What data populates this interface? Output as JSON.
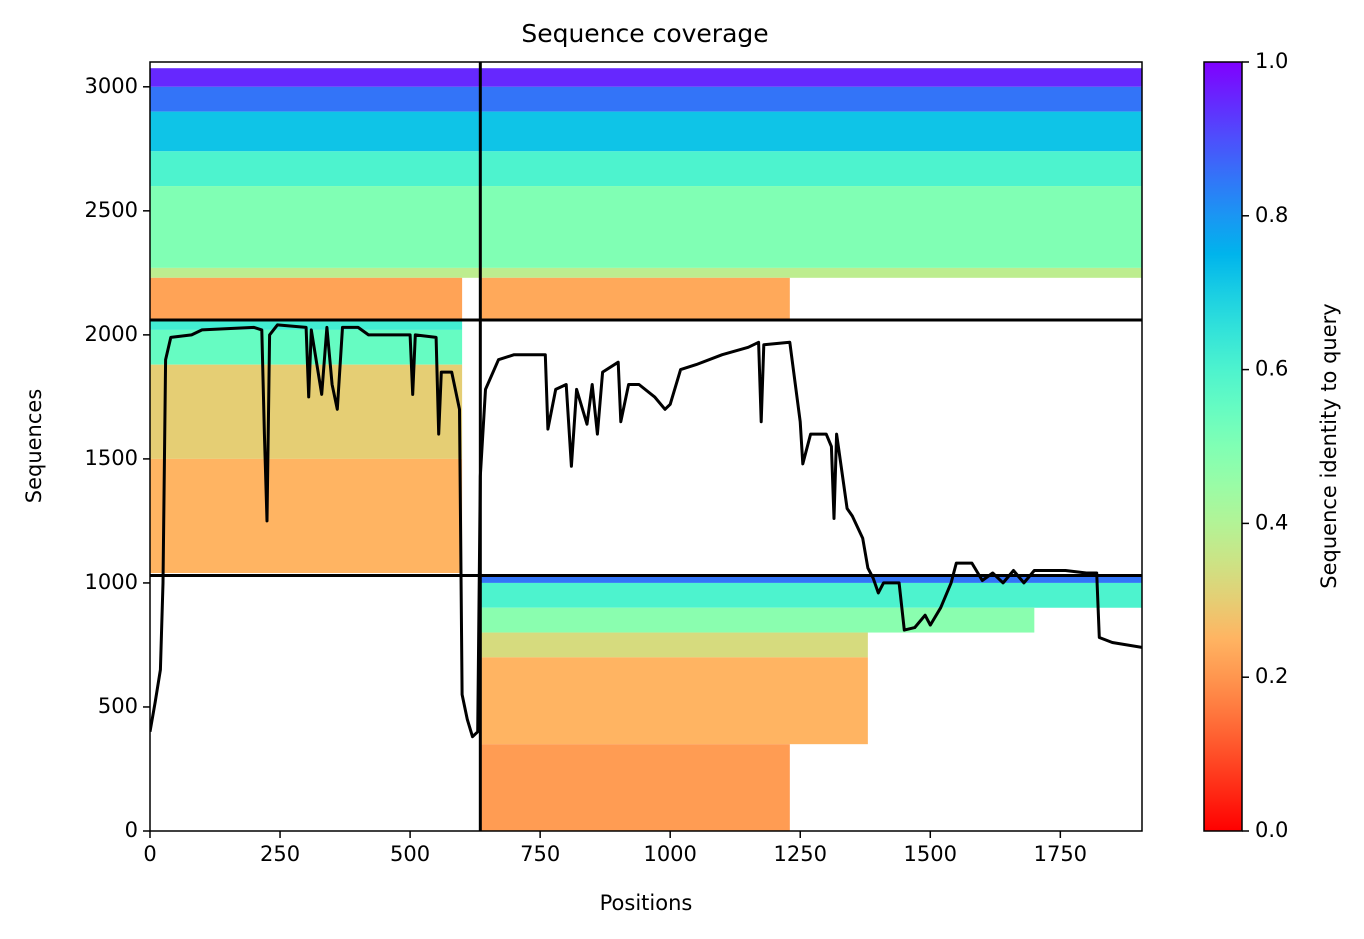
{
  "chart_data": {
    "type": "heatmap",
    "title": "Sequence coverage",
    "xlabel": "Positions",
    "ylabel": "Sequences",
    "colorbar_label": "Sequence identity to query",
    "colormap": "rainbow_r",
    "xlim": [
      0,
      1907
    ],
    "ylim": [
      0,
      3100
    ],
    "xticks": [
      0,
      250,
      500,
      750,
      1000,
      1250,
      1500,
      1750
    ],
    "yticks": [
      0,
      500,
      1000,
      1500,
      2000,
      2500,
      3000
    ],
    "clim": [
      0,
      1
    ],
    "cticks": [
      {
        "value": 0,
        "label": "0.0"
      },
      {
        "value": 0.2,
        "label": "0.2"
      },
      {
        "value": 0.4,
        "label": "0.4"
      },
      {
        "value": 0.6,
        "label": "0.6"
      },
      {
        "value": 0.8,
        "label": "0.8"
      },
      {
        "value": 1,
        "label": "1.0"
      }
    ],
    "blocks": [
      {
        "x": [
          0,
          1907
        ],
        "y": [
          3000,
          3075
        ],
        "identity": 0.95
      },
      {
        "x": [
          0,
          1907
        ],
        "y": [
          2900,
          3000
        ],
        "identity": 0.85
      },
      {
        "x": [
          0,
          1907
        ],
        "y": [
          2740,
          2900
        ],
        "identity": 0.72
      },
      {
        "x": [
          0,
          1907
        ],
        "y": [
          2600,
          2740
        ],
        "identity": 0.6
      },
      {
        "x": [
          0,
          1907
        ],
        "y": [
          2270,
          2600
        ],
        "identity": 0.5
      },
      {
        "x": [
          0,
          1907
        ],
        "y": [
          2230,
          2270
        ],
        "identity": 0.38
      },
      {
        "x": [
          0,
          600
        ],
        "y": [
          2060,
          2230
        ],
        "identity": 0.22
      },
      {
        "x": [
          635,
          1230
        ],
        "y": [
          2060,
          2230
        ],
        "identity": 0.23
      },
      {
        "x": [
          0,
          600
        ],
        "y": [
          2020,
          2060
        ],
        "identity": 0.62
      },
      {
        "x": [
          0,
          600
        ],
        "y": [
          1880,
          2020
        ],
        "identity": 0.55
      },
      {
        "x": [
          0,
          600
        ],
        "y": [
          1500,
          1880
        ],
        "identity": 0.3
      },
      {
        "x": [
          0,
          600
        ],
        "y": [
          1040,
          1500
        ],
        "identity": 0.25
      },
      {
        "x": [
          635,
          1907
        ],
        "y": [
          1000,
          1030
        ],
        "identity": 0.85
      },
      {
        "x": [
          635,
          1907
        ],
        "y": [
          900,
          1000
        ],
        "identity": 0.6
      },
      {
        "x": [
          635,
          1700
        ],
        "y": [
          800,
          900
        ],
        "identity": 0.48
      },
      {
        "x": [
          635,
          1380
        ],
        "y": [
          700,
          800
        ],
        "identity": 0.33
      },
      {
        "x": [
          635,
          1380
        ],
        "y": [
          350,
          700
        ],
        "identity": 0.25
      },
      {
        "x": [
          635,
          1230
        ],
        "y": [
          0,
          350
        ],
        "identity": 0.21
      }
    ],
    "dividers": {
      "x": [
        635
      ],
      "y": [
        1030,
        2060
      ]
    },
    "coverage": {
      "x": [
        0,
        10,
        20,
        25,
        30,
        40,
        80,
        100,
        200,
        215,
        220,
        225,
        230,
        245,
        300,
        305,
        310,
        330,
        340,
        350,
        360,
        370,
        400,
        420,
        500,
        505,
        510,
        550,
        555,
        560,
        580,
        590,
        595,
        600,
        610,
        620,
        630,
        635,
        645,
        670,
        700,
        760,
        765,
        780,
        800,
        810,
        820,
        840,
        850,
        860,
        870,
        900,
        905,
        920,
        940,
        970,
        990,
        1000,
        1020,
        1050,
        1100,
        1150,
        1170,
        1175,
        1180,
        1230,
        1250,
        1255,
        1270,
        1300,
        1310,
        1315,
        1320,
        1340,
        1350,
        1370,
        1380,
        1390,
        1400,
        1410,
        1420,
        1440,
        1450,
        1470,
        1490,
        1500,
        1520,
        1540,
        1550,
        1580,
        1600,
        1620,
        1640,
        1660,
        1680,
        1700,
        1760,
        1800,
        1820,
        1825,
        1850,
        1907
      ],
      "y": [
        400,
        520,
        650,
        1000,
        1900,
        1990,
        2000,
        2020,
        2030,
        2020,
        1600,
        1250,
        2000,
        2040,
        2030,
        1750,
        2020,
        1760,
        2030,
        1800,
        1700,
        2030,
        2030,
        2000,
        2000,
        1760,
        2000,
        1990,
        1600,
        1850,
        1850,
        1750,
        1700,
        550,
        450,
        380,
        400,
        1430,
        1780,
        1900,
        1920,
        1920,
        1620,
        1780,
        1800,
        1470,
        1780,
        1640,
        1800,
        1600,
        1850,
        1890,
        1650,
        1800,
        1800,
        1750,
        1700,
        1720,
        1860,
        1880,
        1920,
        1950,
        1970,
        1650,
        1960,
        1970,
        1650,
        1480,
        1600,
        1600,
        1550,
        1260,
        1600,
        1300,
        1270,
        1180,
        1060,
        1020,
        960,
        1000,
        1000,
        1000,
        810,
        820,
        870,
        830,
        900,
        1000,
        1080,
        1080,
        1010,
        1040,
        1000,
        1050,
        1000,
        1050,
        1050,
        1040,
        1040,
        780,
        760,
        740
      ]
    }
  }
}
